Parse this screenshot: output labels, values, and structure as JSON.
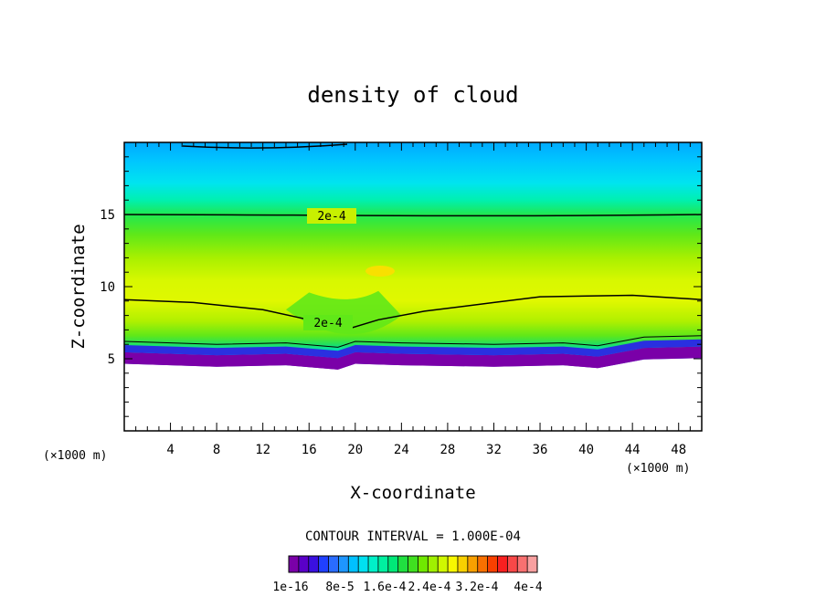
{
  "chart_data": {
    "type": "heatmap",
    "title": "density of cloud",
    "xlabel": "X-coordinate",
    "ylabel": "Z-coordinate",
    "x_unit_label": "(×1000 m)",
    "z_unit_label": "(×1000 m)",
    "xlim": [
      0,
      50
    ],
    "ylim": [
      0,
      20
    ],
    "x_ticks": [
      4,
      8,
      12,
      16,
      20,
      24,
      28,
      32,
      36,
      40,
      44,
      48
    ],
    "y_ticks": [
      5,
      10,
      15
    ],
    "contour_interval_label": "CONTOUR INTERVAL = 1.000E-04",
    "contour_labels": [
      "2e-4",
      "2e-4"
    ],
    "colorbar_labels": [
      "1e-16",
      "8e-5",
      "1.6e-4",
      "2.4e-4",
      "3.2e-4",
      "4e-4"
    ],
    "colorbar_colors": [
      "#7a00a8",
      "#5a00c8",
      "#3a10e0",
      "#2040ff",
      "#2a6cff",
      "#1e96ff",
      "#00c0ff",
      "#00e0f0",
      "#00f0c8",
      "#00f0a0",
      "#00e878",
      "#20e040",
      "#40e020",
      "#70e800",
      "#a0f000",
      "#d0f800",
      "#f8f800",
      "#f8d000",
      "#f8a000",
      "#f87000",
      "#f84000",
      "#f82020",
      "#f84848",
      "#f87070",
      "#f8a0a0"
    ],
    "structure": {
      "base_altitude_profile": [
        [
          0,
          5.0
        ],
        [
          8,
          4.8
        ],
        [
          14,
          4.9
        ],
        [
          18.5,
          4.6
        ],
        [
          20,
          5.0
        ],
        [
          24,
          4.9
        ],
        [
          32,
          4.8
        ],
        [
          38,
          4.9
        ],
        [
          41,
          4.7
        ],
        [
          45,
          5.3
        ],
        [
          50,
          5.4
        ]
      ],
      "contour_2e-4_upper_z": 15.0,
      "contour_2e-4_lower_profile": [
        [
          0,
          9.1
        ],
        [
          6,
          8.9
        ],
        [
          12,
          8.4
        ],
        [
          16,
          7.7
        ],
        [
          19.5,
          7.1
        ],
        [
          22,
          7.7
        ],
        [
          26,
          8.3
        ],
        [
          32,
          8.9
        ],
        [
          36,
          9.3
        ],
        [
          44,
          9.4
        ],
        [
          50,
          9.1
        ]
      ]
    }
  }
}
